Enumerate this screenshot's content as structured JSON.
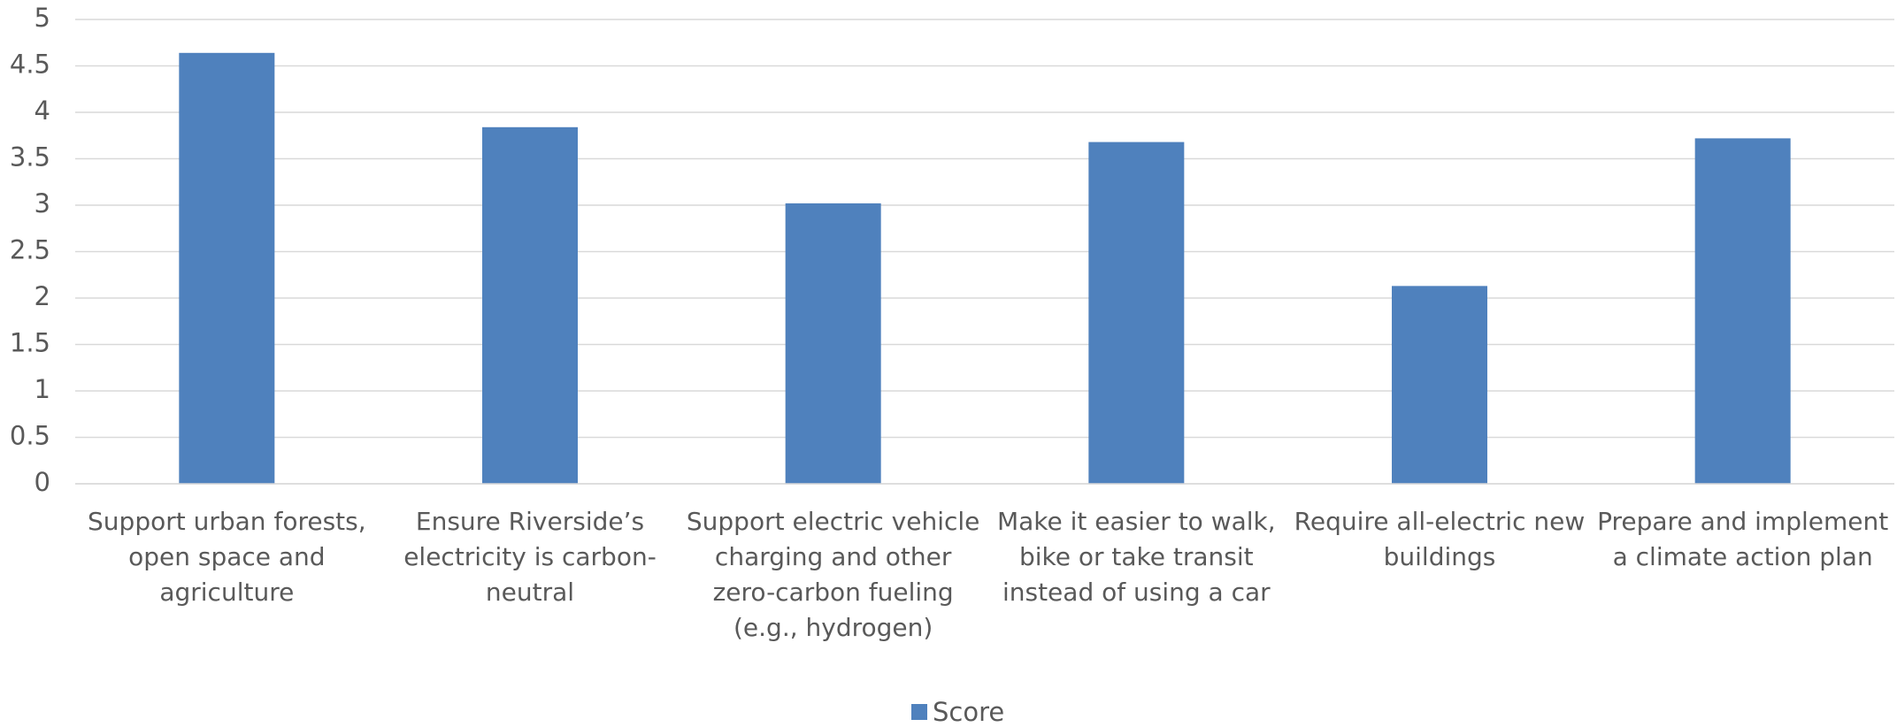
{
  "chart_data": {
    "type": "bar",
    "categories": [
      "Support urban forests, open space and agriculture",
      "Ensure Riverside’s electricity is carbon-neutral",
      "Support electric vehicle charging and other zero-carbon fueling (e.g., hydrogen)",
      "Make it easier to walk, bike or take transit instead of using a car",
      "Require all-electric new buildings",
      "Prepare and implement a climate action plan"
    ],
    "series": [
      {
        "name": "Score",
        "color": "#4f81bd",
        "values": [
          4.64,
          3.84,
          3.02,
          3.68,
          2.13,
          3.72
        ]
      }
    ],
    "ylim": [
      0,
      5
    ],
    "yticks": [
      0,
      0.5,
      1,
      1.5,
      2,
      2.5,
      3,
      3.5,
      4,
      4.5,
      5
    ],
    "grid": true,
    "legend": "bottom"
  }
}
